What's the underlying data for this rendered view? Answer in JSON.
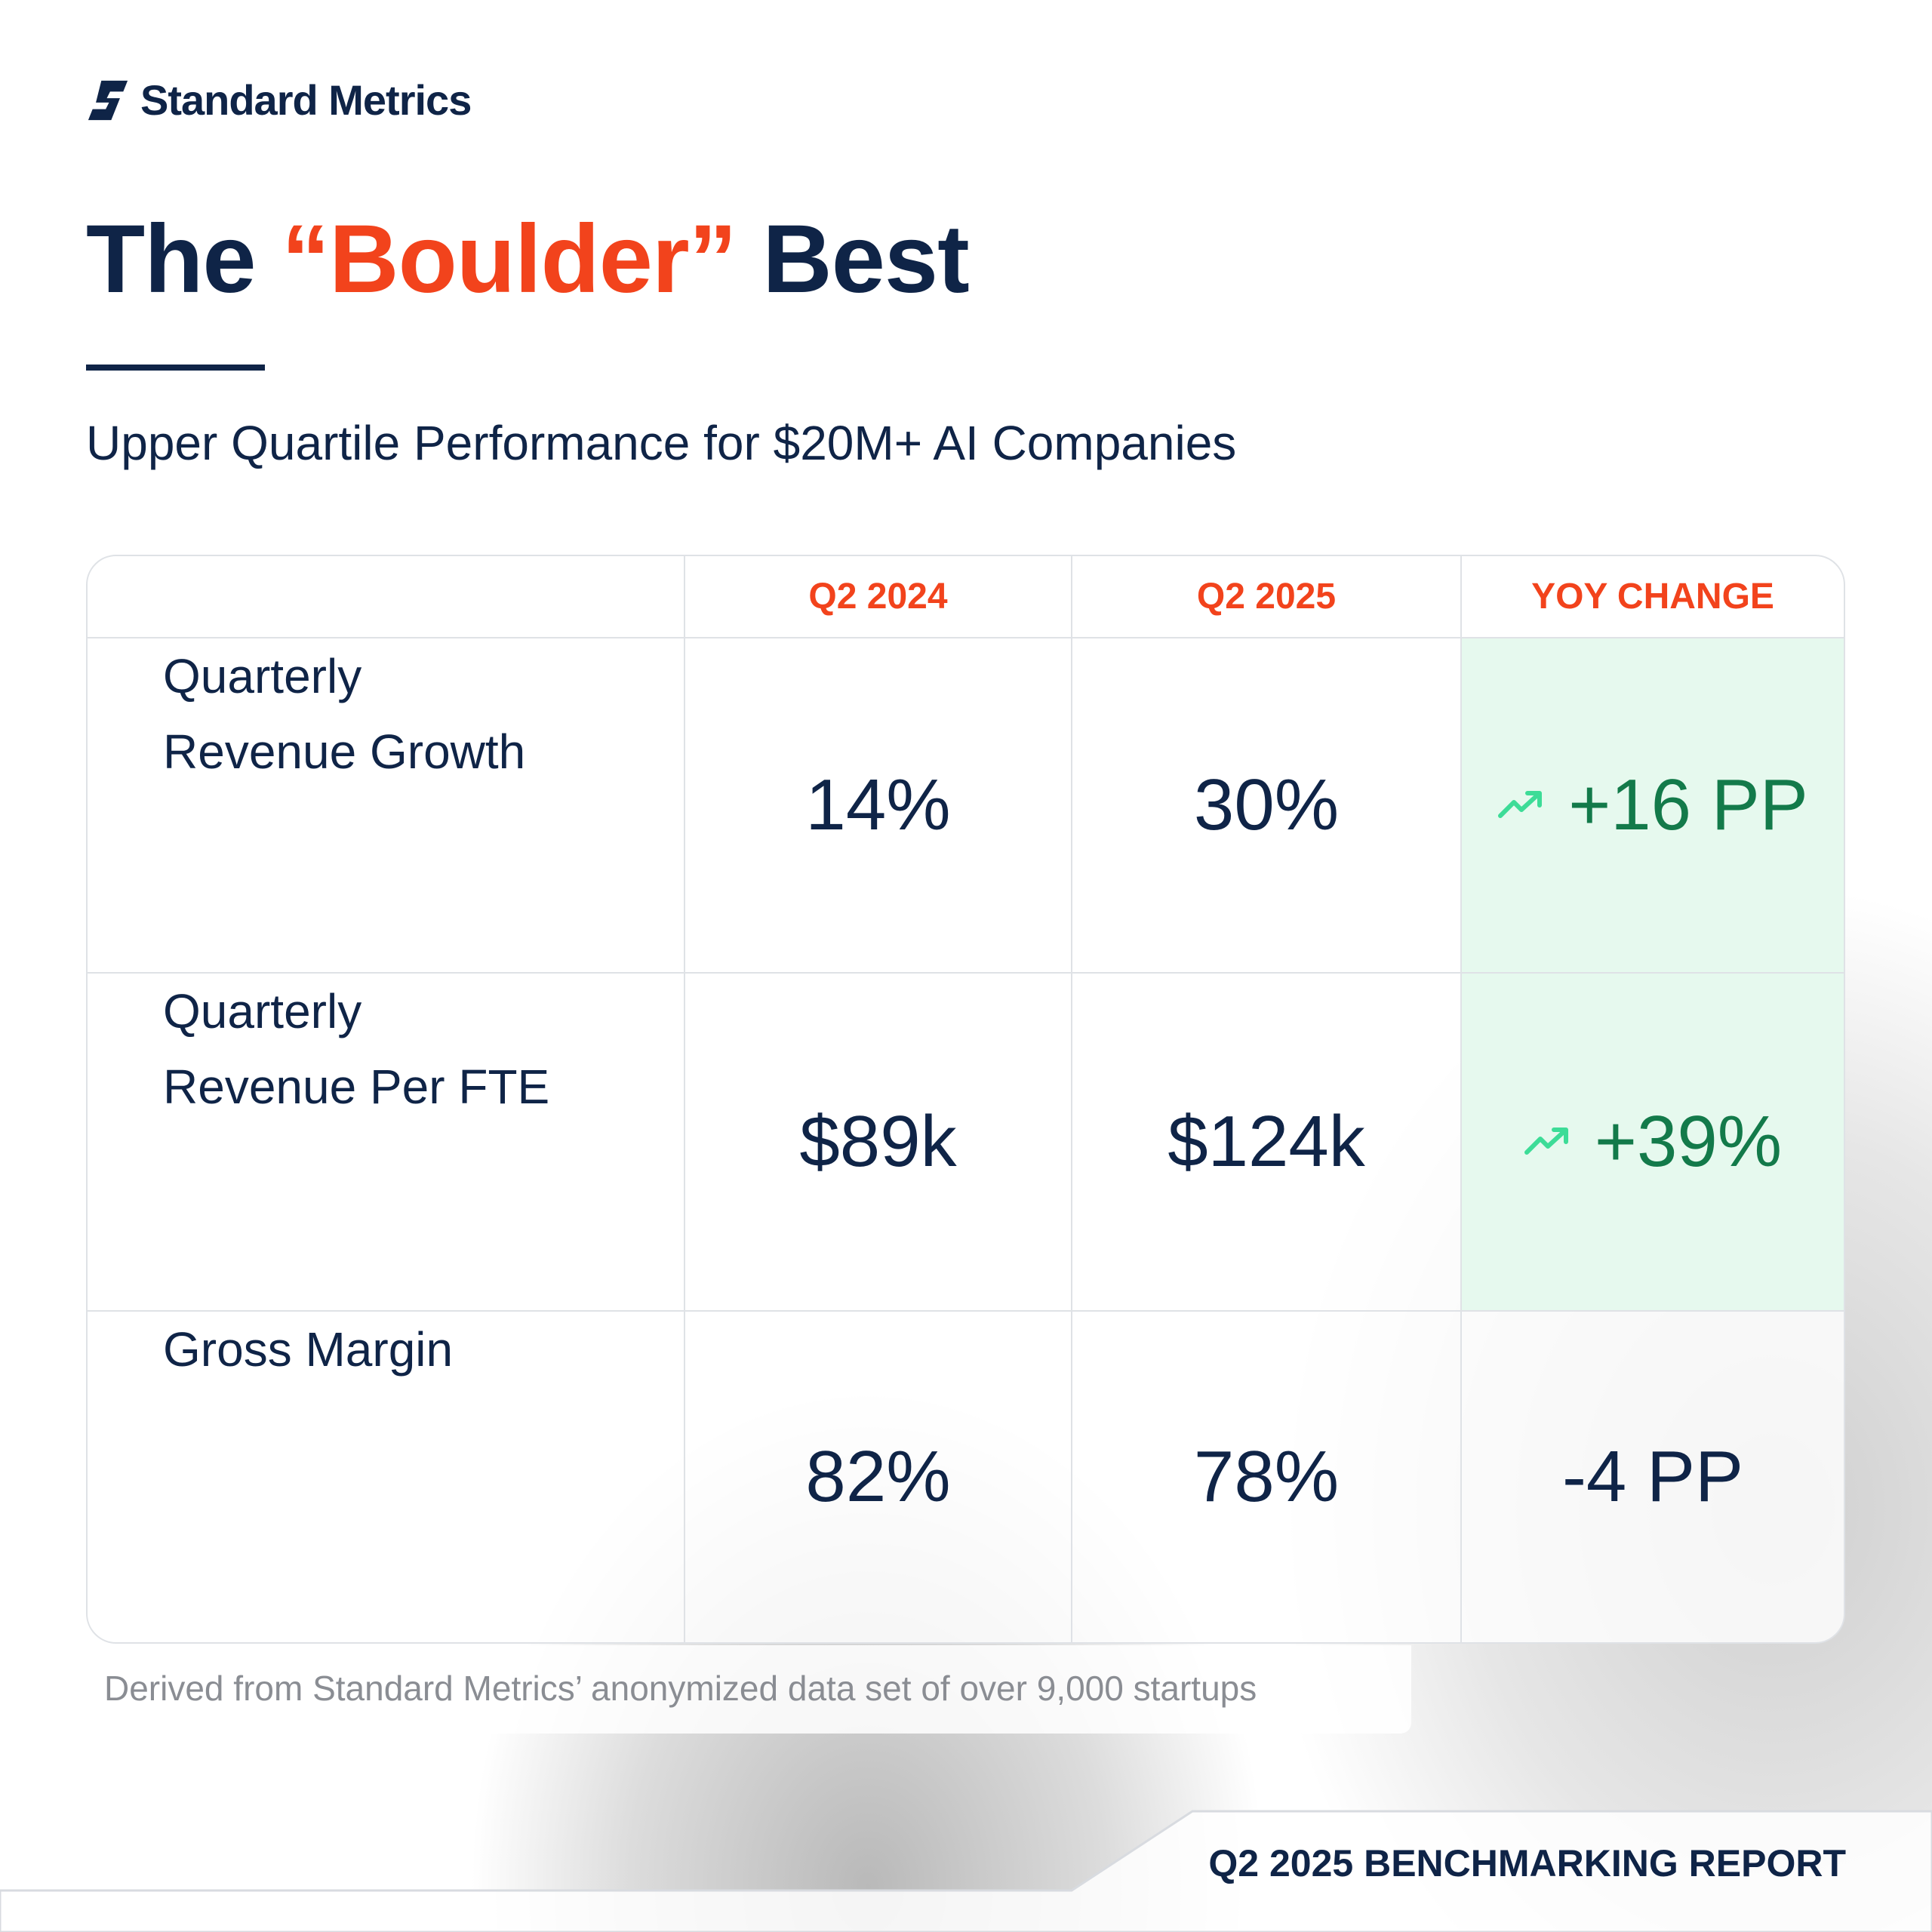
{
  "brand": "Standard Metrics",
  "title": {
    "before": "The",
    "highlight": "“Boulder”",
    "after": "Best"
  },
  "subtitle": "Upper Quartile Performance for $20M+ AI Companies",
  "table": {
    "header": [
      "Q2 2024",
      "Q2 2025",
      "YOY CHANGE"
    ],
    "rows": [
      [
        "Quarterly",
        "Revenue Growth",
        "14%",
        "30%",
        "+16 PP"
      ],
      [
        "Quarterly",
        "Revenue Per FTE",
        "$89k",
        "$124k",
        "+39%"
      ],
      [
        "Gross Margin",
        "",
        "82%",
        "78%",
        "-4 PP"
      ]
    ]
  },
  "footnote": "Derived from Standard Metrics’ anonymized data set of over 9,000 startups",
  "report": "Q2 2025 BENCHMARKING REPORT"
}
